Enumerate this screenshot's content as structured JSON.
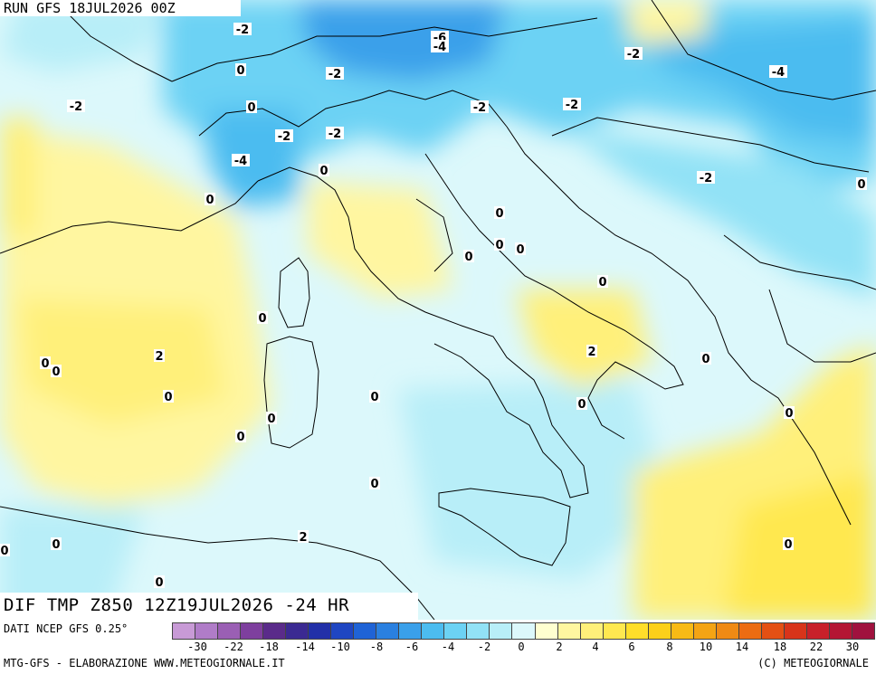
{
  "header": {
    "run": "RUN GFS 18JUL2026 00Z"
  },
  "title": {
    "text": "DIF TMP Z850 12Z19JUL2026 -24 HR"
  },
  "source": {
    "text": "DATI NCEP GFS 0.25°"
  },
  "footer": {
    "left": "MTG-GFS - ELABORAZIONE WWW.METEOGIORNALE.IT",
    "right": "(C) METEOGIORNALE"
  },
  "scale": {
    "colors": [
      "#c89ad6",
      "#b07cc8",
      "#9a5fb4",
      "#7e3f9e",
      "#5a2b8a",
      "#3b2a92",
      "#2230a8",
      "#1f46c2",
      "#1f63d6",
      "#2a80e0",
      "#3aa0ea",
      "#4cbcf0",
      "#6cd2f4",
      "#92e2f6",
      "#b8eef8",
      "#dcf8fb",
      "#ffffd0",
      "#fff6a0",
      "#fff07a",
      "#ffe850",
      "#ffde2a",
      "#fcd01a",
      "#f8ba16",
      "#f4a414",
      "#f08a14",
      "#ec6c12",
      "#e45014",
      "#d8341a",
      "#c8202a",
      "#b41634",
      "#a0123e"
    ],
    "ticks": [
      "-30",
      "-22",
      "-18",
      "-14",
      "-10",
      "-8",
      "-6",
      "-4",
      "-2",
      "0",
      "2",
      "4",
      "6",
      "8",
      "10",
      "14",
      "18",
      "22",
      "30"
    ]
  },
  "labels": [
    "-2",
    "0",
    "-2",
    "0",
    "-2",
    "-6",
    "-4",
    "-2",
    "-2",
    "0",
    "-4",
    "-2",
    "-2",
    "-2",
    "-4",
    "0",
    "0",
    "-2",
    "0",
    "0",
    "0",
    "0",
    "0",
    "0",
    "2",
    "2",
    "0",
    "0",
    "0",
    "0",
    "0",
    "0",
    "0",
    "0",
    "0",
    "0",
    "0",
    "2",
    "0",
    "0",
    "0"
  ]
}
